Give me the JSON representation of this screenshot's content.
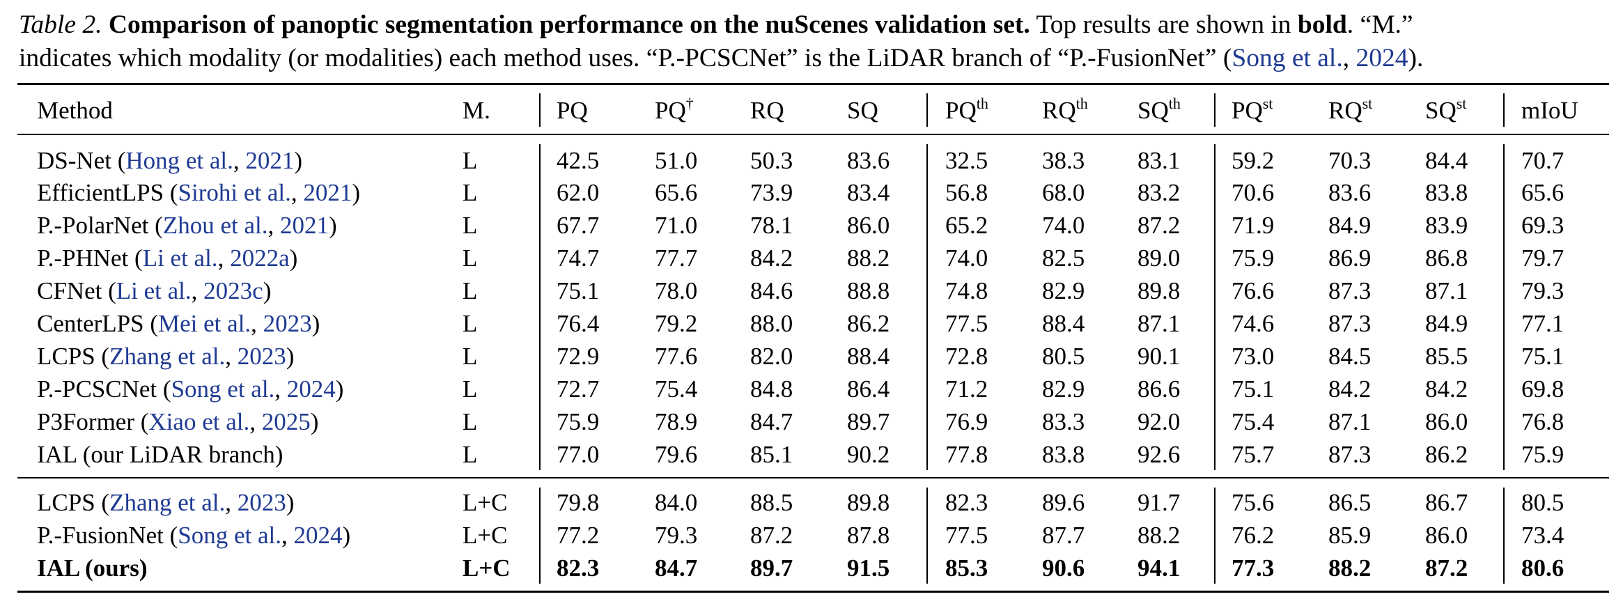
{
  "caption": {
    "label": "Table 2.",
    "title": "Comparison of panoptic segmentation performance on the nuScenes validation set.",
    "text1": " Top results are shown in ",
    "bold_word": "bold",
    "text2": ". “M.”",
    "line2_a": "indicates which modality (or modalities) each method uses. “P.-PCSCNet” is the LiDAR branch of “P.-FusionNet” (",
    "line2_cite_author": "Song et al.",
    "line2_sep": ", ",
    "line2_cite_year": "2024",
    "line2_end": ")."
  },
  "header": {
    "method": "Method",
    "modality": "M.",
    "cols": [
      {
        "base": "PQ",
        "sup": ""
      },
      {
        "base": "PQ",
        "sup": "†"
      },
      {
        "base": "RQ",
        "sup": ""
      },
      {
        "base": "SQ",
        "sup": ""
      },
      {
        "base": "PQ",
        "sup": "th"
      },
      {
        "base": "RQ",
        "sup": "th"
      },
      {
        "base": "SQ",
        "sup": "th"
      },
      {
        "base": "PQ",
        "sup": "st"
      },
      {
        "base": "RQ",
        "sup": "st"
      },
      {
        "base": "SQ",
        "sup": "st"
      },
      {
        "base": "mIoU",
        "sup": ""
      }
    ]
  },
  "rows": [
    {
      "name": "DS-Net",
      "cite_author": "Hong et al.",
      "cite_year": "2021",
      "m": "L",
      "values": [
        "42.5",
        "51.0",
        "50.3",
        "83.6",
        "32.5",
        "38.3",
        "83.1",
        "59.2",
        "70.3",
        "84.4",
        "70.7"
      ]
    },
    {
      "name": "EfficientLPS",
      "cite_author": "Sirohi et al.",
      "cite_year": "2021",
      "m": "L",
      "values": [
        "62.0",
        "65.6",
        "73.9",
        "83.4",
        "56.8",
        "68.0",
        "83.2",
        "70.6",
        "83.6",
        "83.8",
        "65.6"
      ]
    },
    {
      "name": "P.-PolarNet",
      "cite_author": "Zhou et al.",
      "cite_year": "2021",
      "m": "L",
      "values": [
        "67.7",
        "71.0",
        "78.1",
        "86.0",
        "65.2",
        "74.0",
        "87.2",
        "71.9",
        "84.9",
        "83.9",
        "69.3"
      ]
    },
    {
      "name": "P.-PHNet",
      "cite_author": "Li et al.",
      "cite_year": "2022a",
      "m": "L",
      "values": [
        "74.7",
        "77.7",
        "84.2",
        "88.2",
        "74.0",
        "82.5",
        "89.0",
        "75.9",
        "86.9",
        "86.8",
        "79.7"
      ]
    },
    {
      "name": "CFNet",
      "cite_author": "Li et al.",
      "cite_year": "2023c",
      "m": "L",
      "values": [
        "75.1",
        "78.0",
        "84.6",
        "88.8",
        "74.8",
        "82.9",
        "89.8",
        "76.6",
        "87.3",
        "87.1",
        "79.3"
      ]
    },
    {
      "name": "CenterLPS",
      "cite_author": "Mei et al.",
      "cite_year": "2023",
      "m": "L",
      "values": [
        "76.4",
        "79.2",
        "88.0",
        "86.2",
        "77.5",
        "88.4",
        "87.1",
        "74.6",
        "87.3",
        "84.9",
        "77.1"
      ]
    },
    {
      "name": "LCPS",
      "cite_author": "Zhang et al.",
      "cite_year": "2023",
      "m": "L",
      "values": [
        "72.9",
        "77.6",
        "82.0",
        "88.4",
        "72.8",
        "80.5",
        "90.1",
        "73.0",
        "84.5",
        "85.5",
        "75.1"
      ]
    },
    {
      "name": "P.-PCSCNet",
      "cite_author": "Song et al.",
      "cite_year": "2024",
      "m": "L",
      "values": [
        "72.7",
        "75.4",
        "84.8",
        "86.4",
        "71.2",
        "82.9",
        "86.6",
        "75.1",
        "84.2",
        "84.2",
        "69.8"
      ]
    },
    {
      "name": "P3Former",
      "cite_author": "Xiao et al.",
      "cite_year": "2025",
      "m": "L",
      "values": [
        "75.9",
        "78.9",
        "84.7",
        "89.7",
        "76.9",
        "83.3",
        "92.0",
        "75.4",
        "87.1",
        "86.0",
        "76.8"
      ]
    },
    {
      "name": "IAL (our LiDAR branch)",
      "cite_author": "",
      "cite_year": "",
      "m": "L",
      "values": [
        "77.0",
        "79.6",
        "85.1",
        "90.2",
        "77.8",
        "83.8",
        "92.6",
        "75.7",
        "87.3",
        "86.2",
        "75.9"
      ]
    },
    {
      "name": "LCPS",
      "cite_author": "Zhang et al.",
      "cite_year": "2023",
      "m": "L+C",
      "values": [
        "79.8",
        "84.0",
        "88.5",
        "89.8",
        "82.3",
        "89.6",
        "91.7",
        "75.6",
        "86.5",
        "86.7",
        "80.5"
      ]
    },
    {
      "name": "P.-FusionNet",
      "cite_author": "Song et al.",
      "cite_year": "2024",
      "m": "L+C",
      "values": [
        "77.2",
        "79.3",
        "87.2",
        "87.8",
        "77.5",
        "87.7",
        "88.2",
        "76.2",
        "85.9",
        "86.0",
        "73.4"
      ]
    },
    {
      "name": "IAL (ours)",
      "cite_author": "",
      "cite_year": "",
      "m": "L+C",
      "bold": true,
      "values": [
        "82.3",
        "84.7",
        "89.7",
        "91.5",
        "85.3",
        "90.6",
        "94.1",
        "77.3",
        "88.2",
        "87.2",
        "80.6"
      ]
    }
  ]
}
